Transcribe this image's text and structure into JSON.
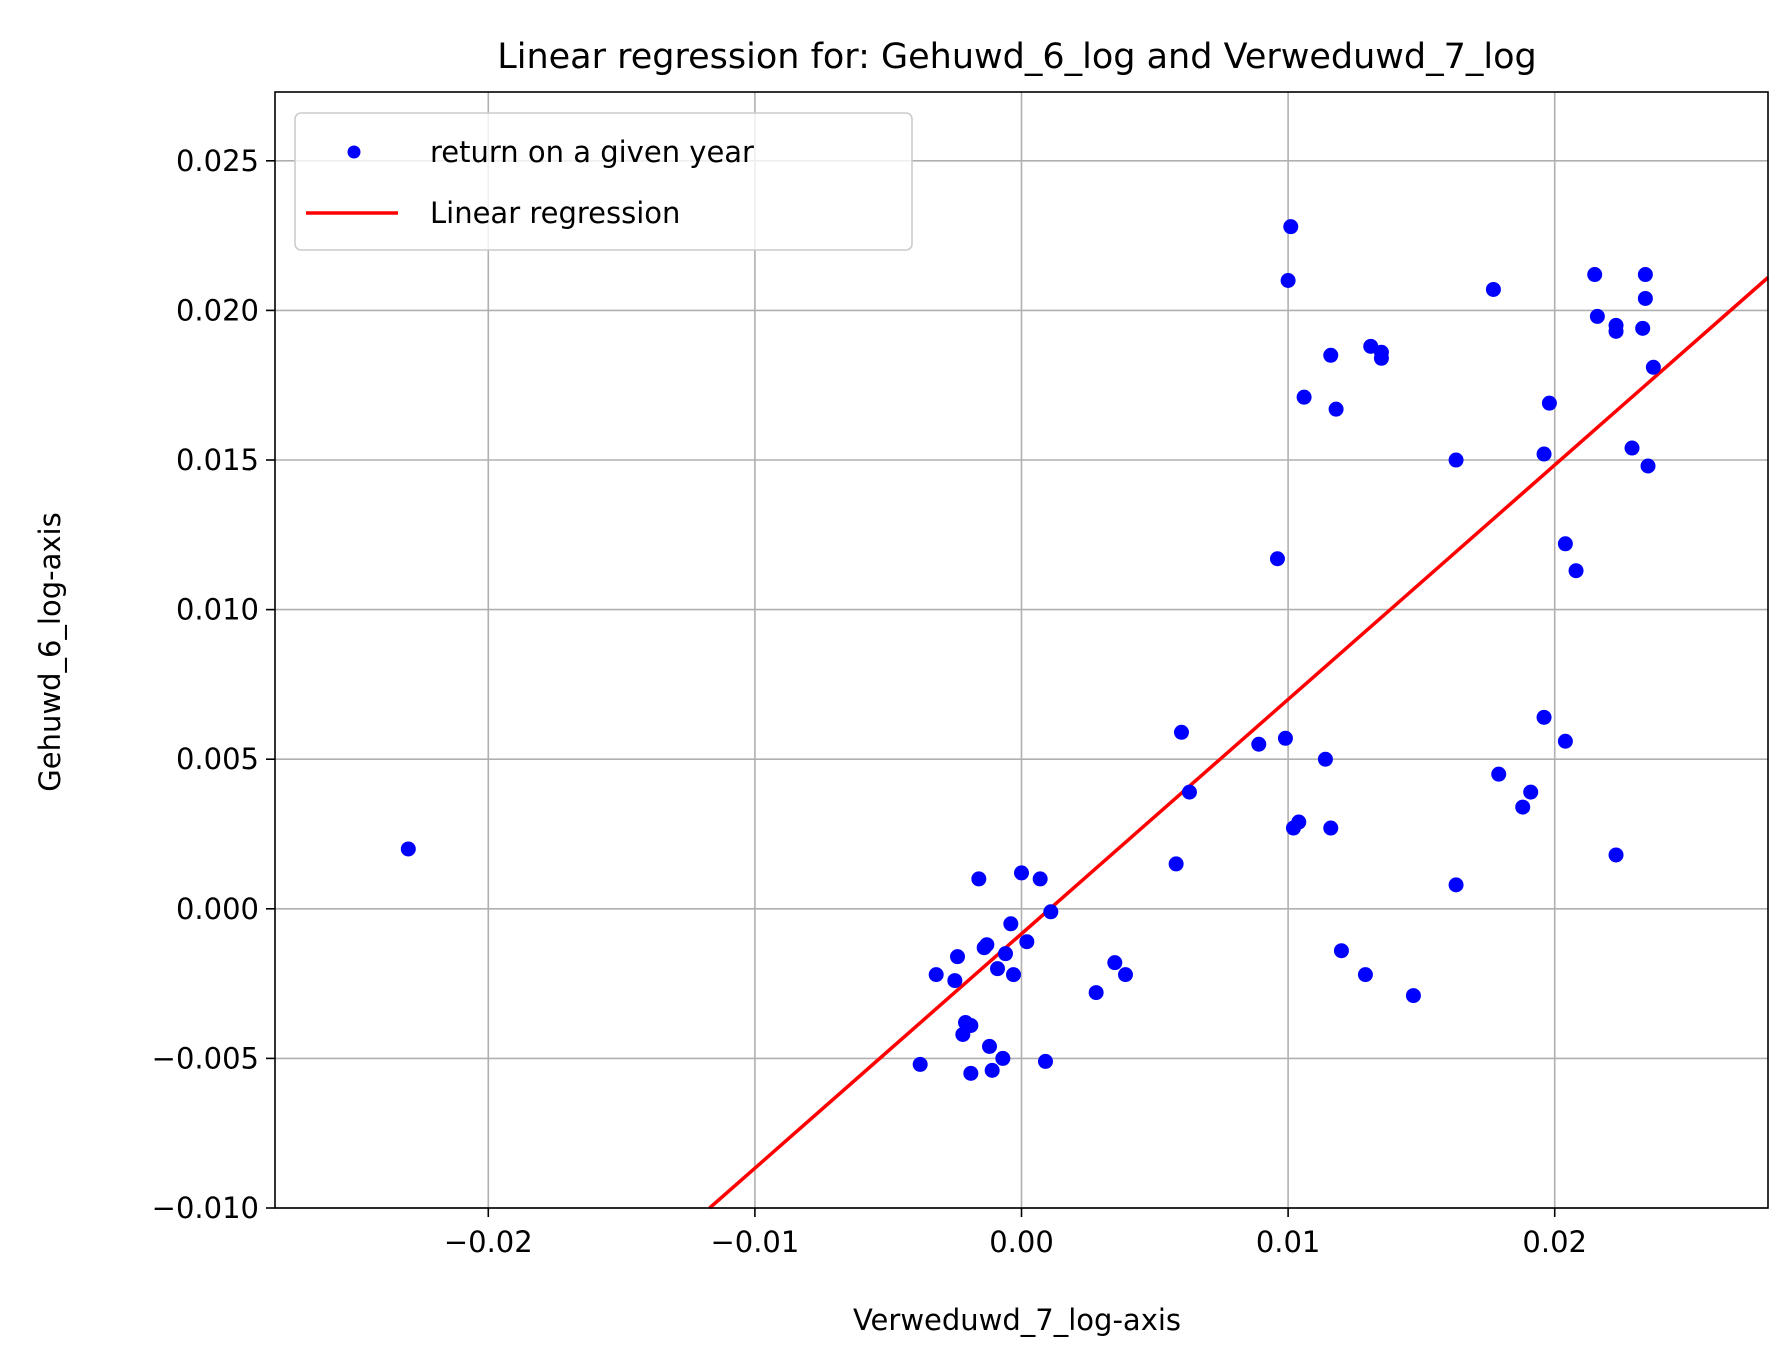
{
  "chart_data": {
    "type": "scatter",
    "title": "Linear regression for: Gehuwd_6_log and Verweduwd_7_log",
    "xlabel": "Verweduwd_7_log-axis",
    "ylabel": "Gehuwd_6_log-axis",
    "xlim": [
      -0.028,
      0.028
    ],
    "ylim": [
      -0.01,
      0.0273
    ],
    "xticks": [
      -0.02,
      -0.01,
      0.0,
      0.01,
      0.02
    ],
    "xtick_labels": [
      "−0.02",
      "−0.01",
      "0.00",
      "0.01",
      "0.02"
    ],
    "yticks": [
      -0.01,
      -0.005,
      0.0,
      0.005,
      0.01,
      0.015,
      0.02,
      0.025
    ],
    "ytick_labels": [
      "−0.010",
      "−0.005",
      "0.000",
      "0.005",
      "0.010",
      "0.015",
      "0.020",
      "0.025"
    ],
    "grid": true,
    "legend_position": "top-left",
    "legend": [
      {
        "label": "return on a given year",
        "kind": "marker",
        "color": "#0000ff"
      },
      {
        "label": "Linear regression",
        "kind": "line",
        "color": "#ff0000"
      }
    ],
    "series": [
      {
        "name": "return on a given year",
        "kind": "scatter",
        "color": "#0000ff",
        "points": [
          [
            -0.023,
            0.002
          ],
          [
            -0.0038,
            -0.0052
          ],
          [
            -0.0032,
            -0.0022
          ],
          [
            -0.0025,
            -0.0024
          ],
          [
            -0.0024,
            -0.0016
          ],
          [
            -0.0022,
            -0.0042
          ],
          [
            -0.0021,
            -0.0038
          ],
          [
            -0.0019,
            -0.0039
          ],
          [
            -0.0019,
            -0.0055
          ],
          [
            -0.0016,
            0.001
          ],
          [
            -0.0014,
            -0.0013
          ],
          [
            -0.0013,
            -0.0012
          ],
          [
            -0.0012,
            -0.0046
          ],
          [
            -0.0011,
            -0.0054
          ],
          [
            -0.0009,
            -0.002
          ],
          [
            -0.0007,
            -0.005
          ],
          [
            -0.0006,
            -0.0015
          ],
          [
            -0.0004,
            -0.0005
          ],
          [
            -0.0003,
            -0.0022
          ],
          [
            0.0,
            0.0012
          ],
          [
            0.0002,
            -0.0011
          ],
          [
            0.0007,
            0.001
          ],
          [
            0.0009,
            -0.0051
          ],
          [
            0.0011,
            -0.0001
          ],
          [
            0.0028,
            -0.0028
          ],
          [
            0.0035,
            -0.0018
          ],
          [
            0.0039,
            -0.0022
          ],
          [
            0.0058,
            0.0015
          ],
          [
            0.006,
            0.0059
          ],
          [
            0.0063,
            0.0039
          ],
          [
            0.0089,
            0.0055
          ],
          [
            0.0096,
            0.0117
          ],
          [
            0.0099,
            0.0057
          ],
          [
            0.01,
            0.021
          ],
          [
            0.0101,
            0.0228
          ],
          [
            0.0102,
            0.0027
          ],
          [
            0.0104,
            0.0029
          ],
          [
            0.0106,
            0.0171
          ],
          [
            0.0114,
            0.005
          ],
          [
            0.0116,
            0.0027
          ],
          [
            0.0116,
            0.0185
          ],
          [
            0.0118,
            0.0167
          ],
          [
            0.012,
            -0.0014
          ],
          [
            0.0129,
            -0.0022
          ],
          [
            0.0131,
            0.0188
          ],
          [
            0.0135,
            0.0184
          ],
          [
            0.0135,
            0.0186
          ],
          [
            0.0147,
            -0.0029
          ],
          [
            0.0163,
            0.015
          ],
          [
            0.0163,
            0.0008
          ],
          [
            0.0177,
            0.0207
          ],
          [
            0.0179,
            0.0045
          ],
          [
            0.0188,
            0.0034
          ],
          [
            0.0191,
            0.0039
          ],
          [
            0.0196,
            0.0064
          ],
          [
            0.0196,
            0.0152
          ],
          [
            0.0198,
            0.0169
          ],
          [
            0.0204,
            0.0122
          ],
          [
            0.0204,
            0.0056
          ],
          [
            0.0208,
            0.0113
          ],
          [
            0.0215,
            0.0212
          ],
          [
            0.0216,
            0.0198
          ],
          [
            0.0223,
            0.0195
          ],
          [
            0.0223,
            0.0193
          ],
          [
            0.0223,
            0.0018
          ],
          [
            0.0229,
            0.0154
          ],
          [
            0.0233,
            0.0194
          ],
          [
            0.0234,
            0.0204
          ],
          [
            0.0234,
            0.0212
          ],
          [
            0.0235,
            0.0148
          ],
          [
            0.0237,
            0.0181
          ]
        ]
      },
      {
        "name": "Linear regression",
        "kind": "line",
        "color": "#ff0000",
        "points": [
          [
            -0.0117,
            -0.01
          ],
          [
            0.028,
            0.0211
          ]
        ]
      }
    ]
  }
}
